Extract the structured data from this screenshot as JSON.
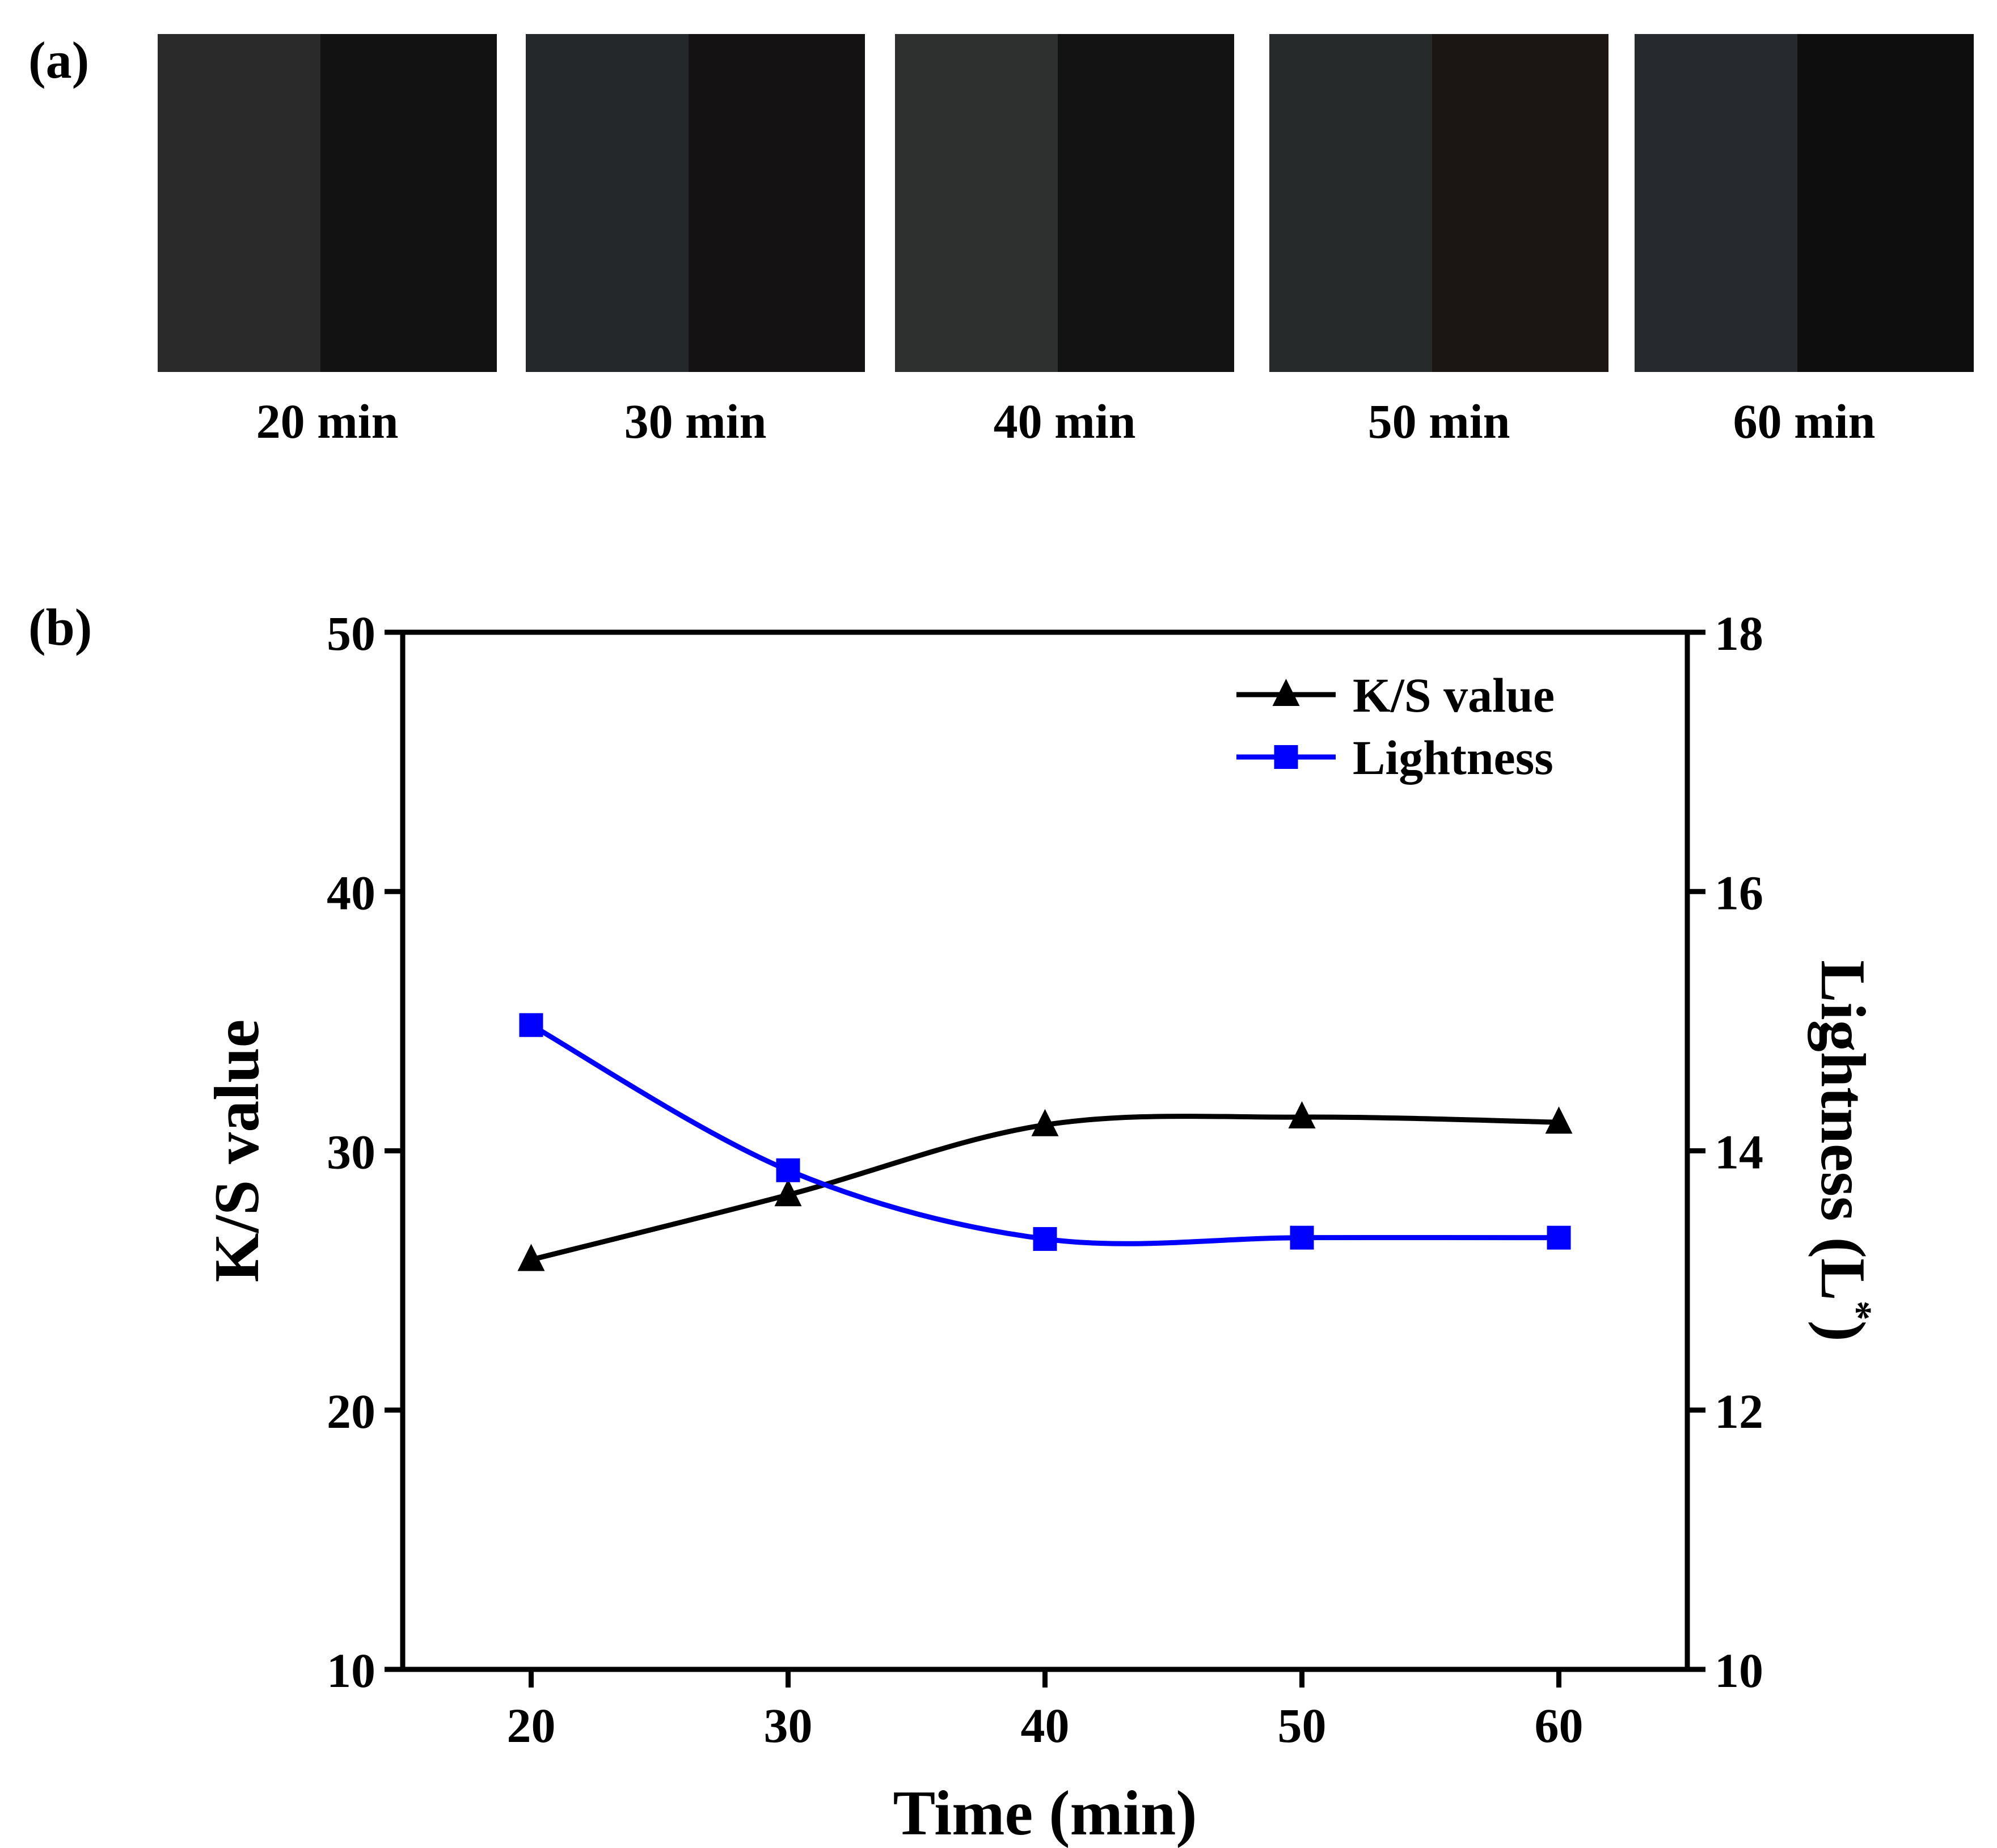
{
  "panels": {
    "a": {
      "label": "(a)",
      "swatches": [
        {
          "caption": "20 min",
          "left_color": "#2a2a2a",
          "right_color": "#121212"
        },
        {
          "caption": "30 min",
          "left_color": "#24282b",
          "right_color": "#141212"
        },
        {
          "caption": "40 min",
          "left_color": "#2d302f",
          "right_color": "#131313"
        },
        {
          "caption": "50 min",
          "left_color": "#262a2a",
          "right_color": "#1b1614"
        },
        {
          "caption": "60 min",
          "left_color": "#262a2e",
          "right_color": "#0e0e0e"
        }
      ]
    },
    "b": {
      "label": "(b)"
    }
  },
  "chart_data": {
    "type": "line",
    "title": "",
    "xlabel": "Time (min)",
    "ylabel": "K/S value",
    "y2label": "Lightness (L*)",
    "x": [
      20,
      30,
      40,
      50,
      60
    ],
    "xticks": [
      20,
      30,
      40,
      50,
      60
    ],
    "xlim": [
      15,
      65
    ],
    "ylim": [
      10,
      50
    ],
    "yticks": [
      10,
      20,
      30,
      40,
      50
    ],
    "y2lim": [
      10,
      18
    ],
    "y2ticks": [
      10,
      12,
      14,
      16,
      18
    ],
    "grid": false,
    "legend": "top-right",
    "series": [
      {
        "name": "K/S value",
        "axis": "left",
        "marker": "triangle",
        "color": "#000000",
        "values": [
          25.8,
          28.3,
          31.0,
          31.3,
          31.1
        ]
      },
      {
        "name": "Lightness",
        "axis": "right",
        "marker": "square",
        "color": "#0000ff",
        "values": [
          14.97,
          13.85,
          13.32,
          13.33,
          13.33
        ]
      }
    ]
  }
}
